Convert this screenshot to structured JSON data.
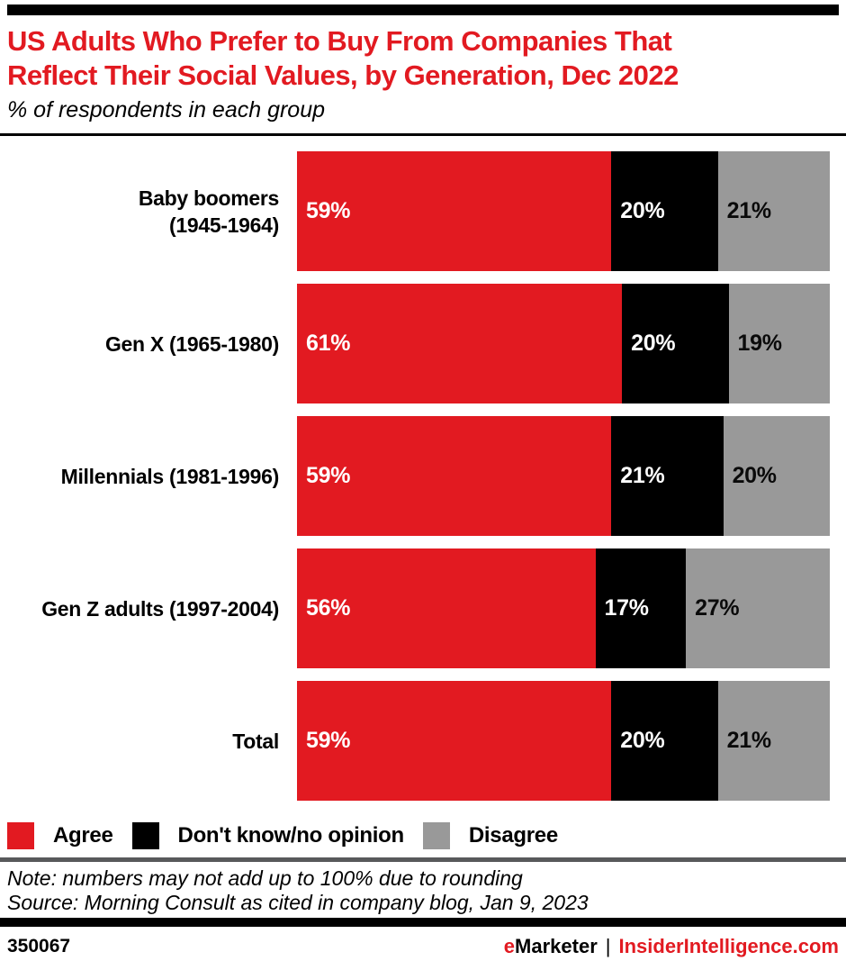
{
  "header": {
    "title": "US Adults Who Prefer to Buy From Companies That\nReflect Their Social Values, by Generation, Dec 2022",
    "subtitle": "% of respondents in each group"
  },
  "chart_data": {
    "type": "bar",
    "orientation": "horizontal",
    "stacked": true,
    "categories": [
      "Baby boomers\n(1945-1964)",
      "Gen X (1965-1980)",
      "Millennials (1981-1996)",
      "Gen Z adults (1997-2004)",
      "Total"
    ],
    "series": [
      {
        "name": "Agree",
        "color": "#E21A21",
        "label_color": "#ffffff",
        "values": [
          59,
          61,
          59,
          56,
          59
        ]
      },
      {
        "name": "Don't know/no opinion",
        "color": "#000000",
        "label_color": "#ffffff",
        "values": [
          20,
          20,
          21,
          17,
          20
        ]
      },
      {
        "name": "Disagree",
        "color": "#999999",
        "label_color": "#0a0a0a",
        "values": [
          21,
          19,
          20,
          27,
          21
        ]
      }
    ],
    "value_suffix": "%",
    "xlim": [
      0,
      100
    ],
    "legend_position": "bottom",
    "grid": false
  },
  "footer": {
    "note": "Note: numbers may not add up to 100% due to rounding",
    "source": "Source: Morning Consult as cited in company blog, Jan 9, 2023",
    "chart_id": "350067",
    "brand_first_letter": "e",
    "brand_rest": "Marketer",
    "brand_separator": "|",
    "brand_site": "InsiderIntelligence.com"
  }
}
